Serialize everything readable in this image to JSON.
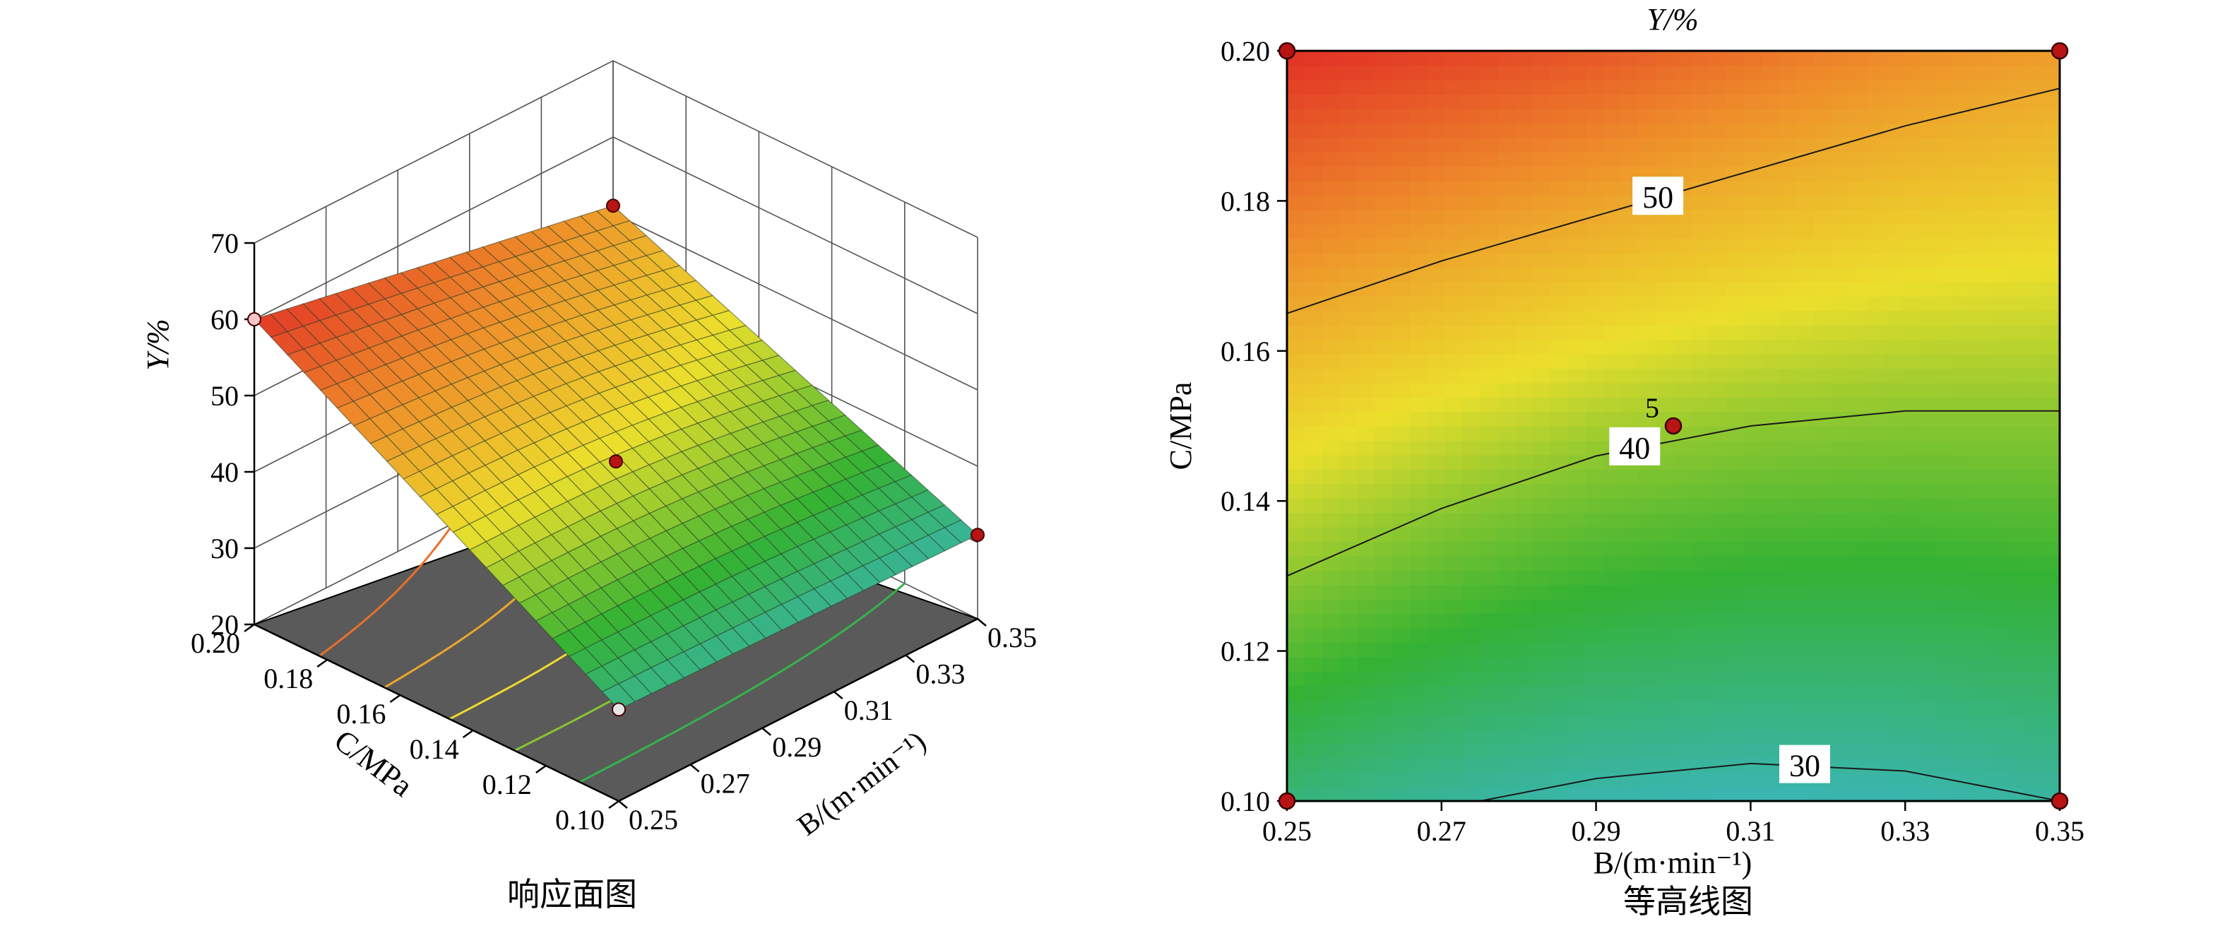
{
  "chart_data": [
    {
      "type": "surface",
      "panel_caption": "响应面图",
      "zlabel": "Y/%",
      "xlabel": "B/(m·min⁻¹)",
      "ylabel": "C/MPa",
      "zlim": [
        20,
        70
      ],
      "z_ticks": [
        "20",
        "30",
        "40",
        "50",
        "60",
        "70"
      ],
      "x_ticks": [
        "0.25",
        "0.27",
        "0.29",
        "0.31",
        "0.33",
        "0.35"
      ],
      "y_ticks": [
        "0.10",
        "0.12",
        "0.14",
        "0.16",
        "0.18",
        "0.20"
      ],
      "xlim": [
        0.25,
        0.35
      ],
      "ylim": [
        0.1,
        0.2
      ],
      "corner_values": [
        {
          "B": 0.25,
          "C": 0.2,
          "Y": 60
        },
        {
          "B": 0.35,
          "C": 0.2,
          "Y": 51
        },
        {
          "B": 0.35,
          "C": 0.1,
          "Y": 31
        },
        {
          "B": 0.25,
          "C": 0.1,
          "Y": 32
        }
      ],
      "center_point": {
        "B": 0.3,
        "C": 0.15,
        "Y": 41
      },
      "grid": true,
      "floor_contours": true,
      "colormap": [
        "#3cb6d8",
        "#34b233",
        "#ecdf2c",
        "#ee8a2a",
        "#e12b25"
      ]
    },
    {
      "type": "contour",
      "title": "Y/%",
      "panel_caption": "等高线图",
      "xlabel": "B/(m·min⁻¹)",
      "ylabel": "C/MPa",
      "xlim": [
        0.25,
        0.35
      ],
      "ylim": [
        0.1,
        0.2
      ],
      "x_ticks": [
        "0.25",
        "0.27",
        "0.29",
        "0.31",
        "0.33",
        "0.35"
      ],
      "y_ticks": [
        "0.10",
        "0.12",
        "0.14",
        "0.16",
        "0.18",
        "0.20"
      ],
      "contour_levels": [
        {
          "level": "50",
          "points": [
            [
              0.25,
              0.165
            ],
            [
              0.27,
              0.172
            ],
            [
              0.29,
              0.178
            ],
            [
              0.31,
              0.184
            ],
            [
              0.33,
              0.19
            ],
            [
              0.35,
              0.195
            ]
          ]
        },
        {
          "level": "40",
          "points": [
            [
              0.25,
              0.13
            ],
            [
              0.27,
              0.139
            ],
            [
              0.29,
              0.146
            ],
            [
              0.31,
              0.15
            ],
            [
              0.33,
              0.152
            ],
            [
              0.35,
              0.152
            ]
          ]
        },
        {
          "level": "30",
          "points": [
            [
              0.275,
              0.1
            ],
            [
              0.29,
              0.103
            ],
            [
              0.31,
              0.105
            ],
            [
              0.33,
              0.104
            ],
            [
              0.35,
              0.1
            ]
          ]
        }
      ],
      "design_points": [
        {
          "B": 0.25,
          "C": 0.2
        },
        {
          "B": 0.35,
          "C": 0.2
        },
        {
          "B": 0.25,
          "C": 0.1
        },
        {
          "B": 0.35,
          "C": 0.1
        },
        {
          "B": 0.3,
          "C": 0.15,
          "label": "5"
        }
      ],
      "colormap": [
        "#3cb6d8",
        "#34b233",
        "#ecdf2c",
        "#ee8a2a",
        "#e12b25"
      ]
    }
  ]
}
